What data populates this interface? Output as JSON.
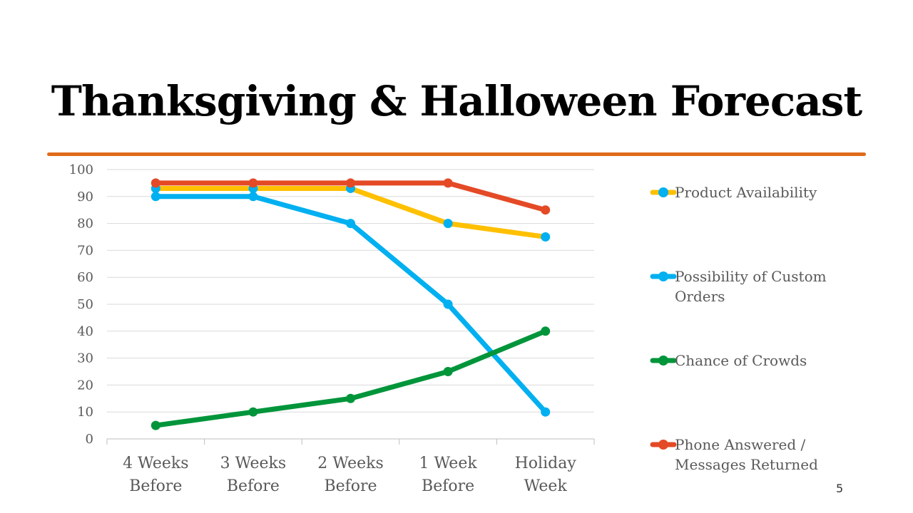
{
  "slide": {
    "title": "Thanksgiving & Halloween Forecast",
    "page_number": "5",
    "accent_color": "#E06A1B"
  },
  "chart_data": {
    "type": "line",
    "title": "",
    "xlabel": "",
    "ylabel": "",
    "categories": [
      [
        "4 Weeks",
        "Before"
      ],
      [
        "3 Weeks",
        "Before"
      ],
      [
        "2 Weeks",
        "Before"
      ],
      [
        "1 Week",
        "Before"
      ],
      [
        "Holiday",
        "Week"
      ]
    ],
    "ylim": [
      0,
      100
    ],
    "yticks": [
      0,
      10,
      20,
      30,
      40,
      50,
      60,
      70,
      80,
      90,
      100
    ],
    "grid": true,
    "legend_position": "right",
    "series": [
      {
        "name": [
          "Product Availability"
        ],
        "color": "#FFC000",
        "marker_color": "#00B0F0",
        "values": [
          93,
          93,
          93,
          80,
          75
        ]
      },
      {
        "name": [
          "Possibility of Custom",
          "Orders"
        ],
        "color": "#00B0F0",
        "marker_color": "#00B0F0",
        "values": [
          90,
          90,
          80,
          50,
          10
        ]
      },
      {
        "name": [
          "Chance of Crowds"
        ],
        "color": "#00953A",
        "marker_color": "#00953A",
        "values": [
          5,
          10,
          15,
          25,
          40
        ]
      },
      {
        "name": [
          "Phone Answered /",
          "Messages Returned"
        ],
        "color": "#E44A26",
        "marker_color": "#E44A26",
        "values": [
          95,
          95,
          95,
          95,
          85
        ]
      }
    ]
  }
}
